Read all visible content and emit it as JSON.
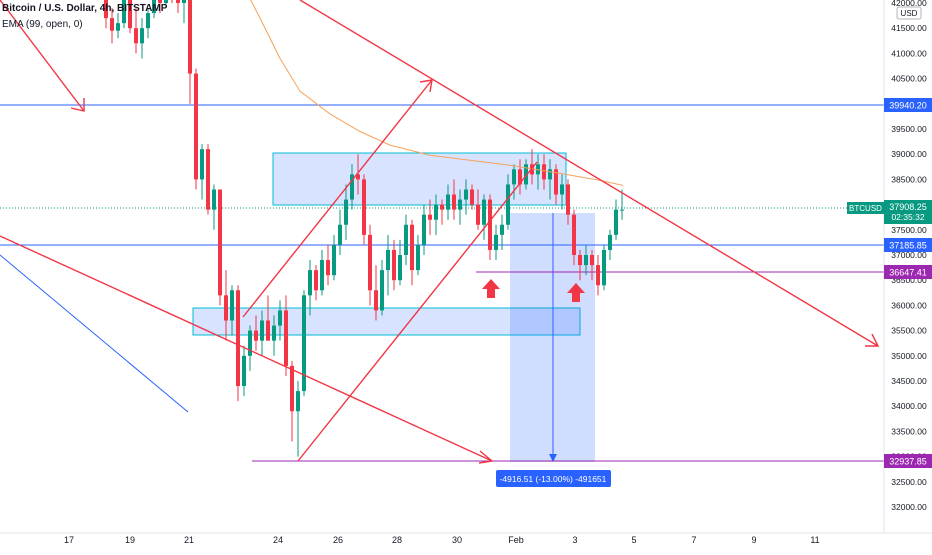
{
  "header": {
    "symbol_line": "Bitcoin / U.S. Dollar, 4h, BITSTAMP",
    "ema_line": "EMA (99, open, 0)"
  },
  "price_axis": {
    "currency": "USD",
    "ticks": [
      "42000.00",
      "41500.00",
      "41000.00",
      "40500.00",
      "40000.00",
      "39500.00",
      "39000.00",
      "38500.00",
      "38000.00",
      "37500.00",
      "37000.00",
      "36500.00",
      "36000.00",
      "35500.00",
      "35000.00",
      "34500.00",
      "34000.00",
      "33500.00",
      "33000.00",
      "32500.00",
      "32000.00"
    ]
  },
  "price_labels": [
    {
      "text": "39940.20",
      "color": "#2962ff"
    },
    {
      "text": "37185.85",
      "color": "#2962ff"
    },
    {
      "text": "36647.41",
      "color": "#9c27b0"
    },
    {
      "text": "32937.85",
      "color": "#9c27b0"
    }
  ],
  "current": {
    "name": "BTCUSD",
    "price": "37908.25",
    "countdown": "02:35:32",
    "color": "#089981"
  },
  "time_axis": {
    "labels": [
      "17",
      "19",
      "21",
      "24",
      "26",
      "28",
      "30",
      "Feb",
      "3",
      "5",
      "7",
      "9",
      "11"
    ]
  },
  "measure_label": "-4916.51 (-13.00%) -491651",
  "colors": {
    "up": "#089981",
    "down": "#f23645",
    "ema": "#f5a25d",
    "trend": "#f23645",
    "hline": "#2962ff",
    "magenta": "#9c27b0",
    "zone": "#2962ff"
  },
  "chart_data": {
    "type": "candlestick",
    "title": "Bitcoin / U.S. Dollar, 4h, BITSTAMP",
    "xlabel": "",
    "ylabel": "USD",
    "ylim": [
      31800,
      42200
    ],
    "x_ticks": [
      "17",
      "19",
      "21",
      "24",
      "26",
      "28",
      "30",
      "Feb",
      "3",
      "5",
      "7",
      "9",
      "11"
    ],
    "series": [
      {
        "name": "EMA (99, open, 0)",
        "values": [
          [
            247,
            42200
          ],
          [
            260,
            41700
          ],
          [
            280,
            40900
          ],
          [
            300,
            40250
          ],
          [
            330,
            39800
          ],
          [
            360,
            39450
          ],
          [
            390,
            39180
          ],
          [
            430,
            38980
          ],
          [
            470,
            38880
          ],
          [
            510,
            38780
          ],
          [
            560,
            38620
          ],
          [
            600,
            38480
          ],
          [
            623,
            38380
          ]
        ]
      }
    ],
    "candles": [
      [
        106,
        42150,
        42300,
        41500,
        41700
      ],
      [
        112,
        41700,
        41900,
        41200,
        41450
      ],
      [
        118,
        41450,
        41800,
        41300,
        41600
      ],
      [
        124,
        41600,
        42300,
        41500,
        42100
      ],
      [
        130,
        42100,
        42300,
        41400,
        41500
      ],
      [
        136,
        41500,
        41900,
        41000,
        41200
      ],
      [
        142,
        41200,
        41700,
        40900,
        41500
      ],
      [
        148,
        41500,
        41900,
        41300,
        41800
      ],
      [
        154,
        41800,
        42300,
        41700,
        42200
      ],
      [
        160,
        42200,
        42300,
        41800,
        42000
      ],
      [
        166,
        42000,
        42300,
        41900,
        42200
      ],
      [
        172,
        42200,
        42300,
        42000,
        42100
      ],
      [
        178,
        42100,
        42300,
        41800,
        42000
      ],
      [
        184,
        42000,
        42300,
        41600,
        42200
      ],
      [
        190,
        42200,
        42300,
        40000,
        40600
      ],
      [
        196,
        40600,
        40700,
        38300,
        38500
      ],
      [
        202,
        38500,
        39200,
        38100,
        39100
      ],
      [
        208,
        39100,
        39200,
        37800,
        37900
      ],
      [
        214,
        37900,
        38400,
        37500,
        38300
      ],
      [
        220,
        38300,
        38300,
        36000,
        36200
      ],
      [
        226,
        36200,
        36700,
        35300,
        35700
      ],
      [
        232,
        35700,
        36400,
        35400,
        36300
      ],
      [
        238,
        36300,
        36400,
        34100,
        34400
      ],
      [
        244,
        34400,
        35200,
        34200,
        35000
      ],
      [
        250,
        35000,
        35600,
        34700,
        35500
      ],
      [
        256,
        35500,
        35800,
        35100,
        35300
      ],
      [
        262,
        35300,
        35900,
        35000,
        35700
      ],
      [
        268,
        35700,
        36200,
        35400,
        35300
      ],
      [
        274,
        35300,
        35800,
        35000,
        35600
      ],
      [
        280,
        35600,
        36100,
        35300,
        35900
      ],
      [
        286,
        35900,
        36200,
        34600,
        34800
      ],
      [
        292,
        34800,
        34900,
        33300,
        33900
      ],
      [
        298,
        33900,
        34500,
        33000,
        34300
      ],
      [
        304,
        34300,
        36300,
        34200,
        36200
      ],
      [
        310,
        36200,
        36900,
        35800,
        36700
      ],
      [
        316,
        36700,
        36800,
        36100,
        36300
      ],
      [
        322,
        36300,
        37100,
        36200,
        36900
      ],
      [
        328,
        36900,
        37200,
        36400,
        36600
      ],
      [
        334,
        36600,
        37400,
        36500,
        37200
      ],
      [
        340,
        37200,
        37900,
        37000,
        37600
      ],
      [
        346,
        37600,
        38400,
        37300,
        38100
      ],
      [
        352,
        38100,
        38800,
        37900,
        38600
      ],
      [
        358,
        38600,
        39000,
        38200,
        38500
      ],
      [
        364,
        38500,
        38600,
        37200,
        37400
      ],
      [
        370,
        37400,
        37600,
        36000,
        36300
      ],
      [
        376,
        36300,
        36800,
        35700,
        35900
      ],
      [
        382,
        35900,
        36900,
        35800,
        36700
      ],
      [
        388,
        36700,
        37400,
        36200,
        37100
      ],
      [
        394,
        37100,
        37300,
        36300,
        36500
      ],
      [
        400,
        36500,
        37300,
        36400,
        37000
      ],
      [
        406,
        37000,
        37800,
        36800,
        37600
      ],
      [
        412,
        37600,
        37700,
        36400,
        36700
      ],
      [
        418,
        36700,
        37400,
        36600,
        37200
      ],
      [
        424,
        37200,
        38000,
        37000,
        37800
      ],
      [
        430,
        37800,
        38100,
        37400,
        37700
      ],
      [
        436,
        37700,
        38200,
        37400,
        38000
      ],
      [
        442,
        38000,
        38100,
        37600,
        37900
      ],
      [
        448,
        37900,
        38400,
        37700,
        38200
      ],
      [
        454,
        38200,
        38500,
        37700,
        37900
      ],
      [
        460,
        37900,
        38300,
        37600,
        38100
      ],
      [
        466,
        38100,
        38500,
        37800,
        38300
      ],
      [
        472,
        38300,
        38400,
        37900,
        38000
      ],
      [
        478,
        38000,
        38300,
        37500,
        37600
      ],
      [
        484,
        37600,
        38200,
        37300,
        38100
      ],
      [
        490,
        38100,
        38200,
        36900,
        37100
      ],
      [
        496,
        37100,
        37600,
        36900,
        37400
      ],
      [
        502,
        37400,
        37800,
        37100,
        37600
      ],
      [
        508,
        37600,
        38600,
        37500,
        38400
      ],
      [
        514,
        38400,
        38800,
        38100,
        38700
      ],
      [
        520,
        38700,
        38900,
        38200,
        38400
      ],
      [
        526,
        38400,
        38900,
        38300,
        38800
      ],
      [
        532,
        38800,
        39100,
        38400,
        38600
      ],
      [
        538,
        38600,
        39000,
        38300,
        38800
      ],
      [
        544,
        38800,
        39000,
        38300,
        38500
      ],
      [
        550,
        38500,
        38900,
        38100,
        38700
      ],
      [
        556,
        38700,
        38800,
        38000,
        38200
      ],
      [
        562,
        38200,
        38600,
        37900,
        38400
      ],
      [
        568,
        38400,
        38500,
        37600,
        37800
      ],
      [
        574,
        37800,
        37900,
        36800,
        37000
      ],
      [
        580,
        37000,
        37100,
        36500,
        36800
      ],
      [
        586,
        36800,
        37200,
        36600,
        37000
      ],
      [
        592,
        37000,
        37100,
        36500,
        36800
      ],
      [
        598,
        36800,
        37000,
        36200,
        36400
      ],
      [
        604,
        36400,
        37200,
        36300,
        37100
      ],
      [
        610,
        37100,
        37500,
        36900,
        37400
      ],
      [
        616,
        37400,
        38100,
        37300,
        37900
      ],
      [
        622,
        37900,
        38300,
        37700,
        37900
      ]
    ]
  }
}
